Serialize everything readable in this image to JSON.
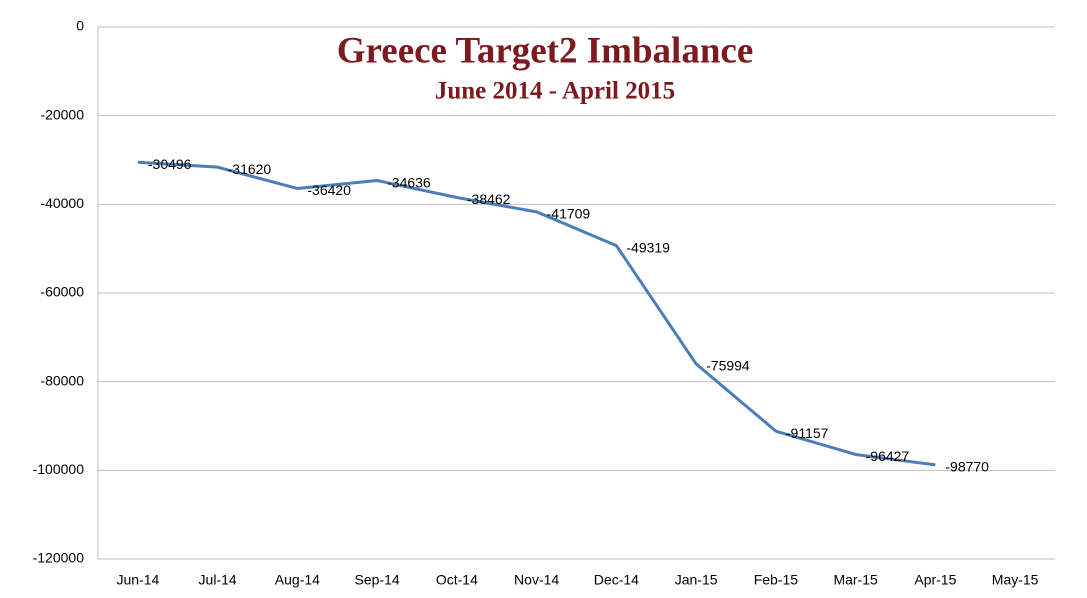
{
  "chart_data": {
    "type": "line",
    "title": "Greece Target2 Imbalance",
    "subtitle": "June 2014 - April 2015",
    "categories": [
      "Jun-14",
      "Jul-14",
      "Aug-14",
      "Sep-14",
      "Oct-14",
      "Nov-14",
      "Dec-14",
      "Jan-15",
      "Feb-15",
      "Mar-15",
      "Apr-15",
      "May-15"
    ],
    "series": [
      {
        "color": "#4a7ebb",
        "values": [
          -30496,
          -31620,
          -36420,
          -34636,
          -38462,
          -41709,
          -49319,
          -75994,
          -91157,
          -96427,
          -98770,
          null
        ]
      }
    ],
    "ylim": [
      -120000,
      0
    ],
    "yticks": [
      0,
      -20000,
      -40000,
      -60000,
      -80000,
      -100000,
      -120000
    ],
    "grid": true
  }
}
